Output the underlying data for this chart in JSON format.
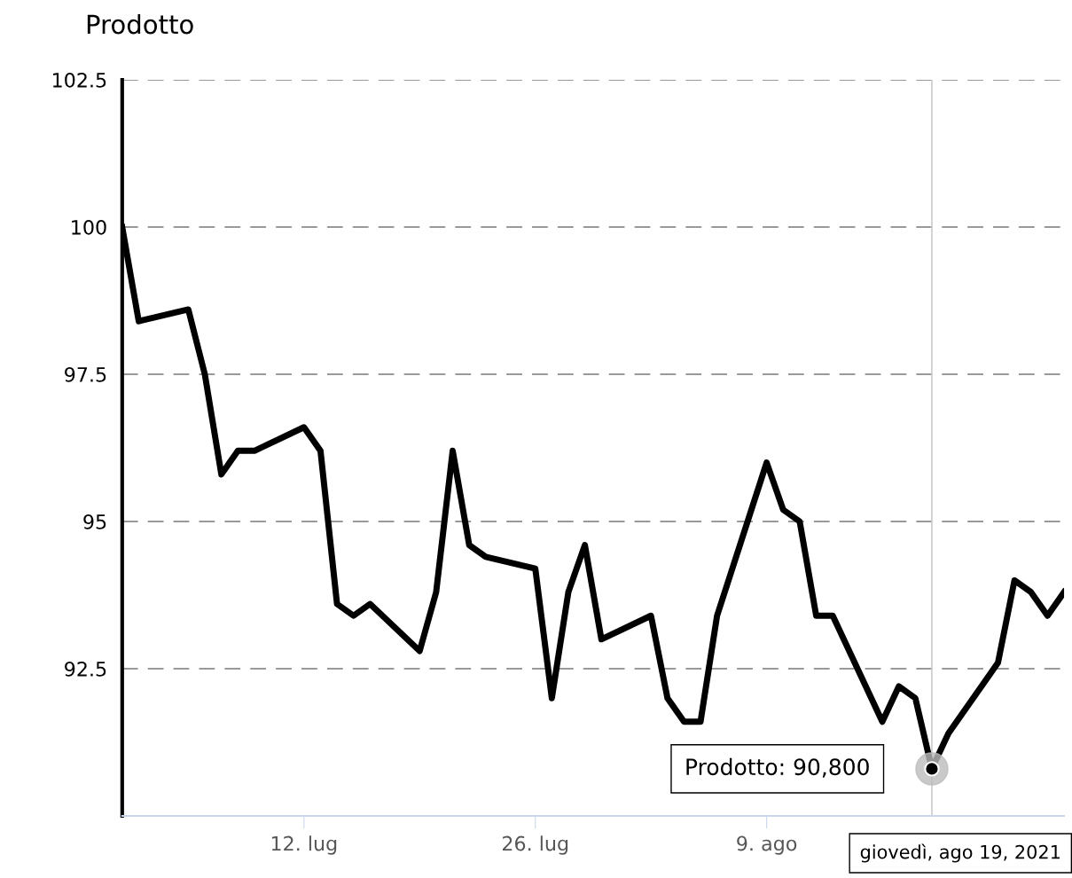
{
  "chart_data": {
    "type": "line",
    "title": "Prodotto",
    "x": [
      "2021-07-01",
      "2021-07-02",
      "2021-07-05",
      "2021-07-06",
      "2021-07-07",
      "2021-07-08",
      "2021-07-09",
      "2021-07-12",
      "2021-07-13",
      "2021-07-14",
      "2021-07-15",
      "2021-07-16",
      "2021-07-19",
      "2021-07-20",
      "2021-07-21",
      "2021-07-22",
      "2021-07-23",
      "2021-07-26",
      "2021-07-27",
      "2021-07-28",
      "2021-07-29",
      "2021-07-30",
      "2021-08-02",
      "2021-08-03",
      "2021-08-04",
      "2021-08-05",
      "2021-08-06",
      "2021-08-09",
      "2021-08-10",
      "2021-08-11",
      "2021-08-12",
      "2021-08-13",
      "2021-08-16",
      "2021-08-17",
      "2021-08-18",
      "2021-08-19",
      "2021-08-20",
      "2021-08-23",
      "2021-08-24",
      "2021-08-25",
      "2021-08-26",
      "2021-08-27"
    ],
    "series": [
      {
        "color": "#000000",
        "values": [
          100.0,
          98.4,
          98.6,
          97.5,
          95.8,
          96.2,
          96.2,
          96.6,
          96.2,
          93.6,
          93.4,
          93.6,
          92.8,
          93.8,
          96.2,
          94.6,
          94.4,
          94.2,
          92.0,
          93.8,
          94.6,
          93.0,
          93.4,
          92.0,
          91.6,
          91.6,
          93.4,
          96.0,
          95.2,
          95.0,
          93.4,
          93.4,
          91.6,
          92.2,
          92.0,
          90.8,
          91.4,
          92.6,
          94.0,
          93.8,
          93.4,
          93.8
        ]
      }
    ],
    "xlim": [
      "2021-07-01",
      "2021-08-27"
    ],
    "xticks": [
      {
        "value": "2021-07-12",
        "label": "12. lug"
      },
      {
        "value": "2021-07-26",
        "label": "26. lug"
      },
      {
        "value": "2021-08-09",
        "label": "9. ago"
      }
    ],
    "ylim": [
      90,
      102.5
    ],
    "yticks": [
      92.5,
      95,
      97.5,
      100,
      102.5
    ],
    "grid": "y",
    "legend": false,
    "marker": "none",
    "line_style": "solid",
    "ref_lines": [
      {
        "axis": "x",
        "value": "2021-08-19",
        "color": "#cccccc"
      }
    ],
    "annotations": [
      {
        "text": "Prodotto: 90,800",
        "x": "2021-08-19",
        "y": 90.8
      },
      "giovedì, ago 19, 2021"
    ]
  }
}
